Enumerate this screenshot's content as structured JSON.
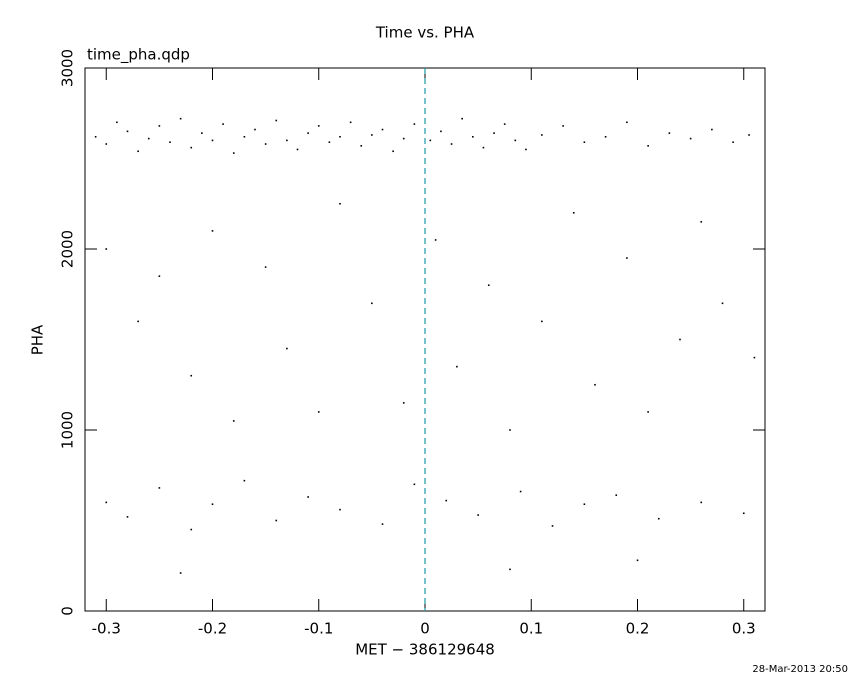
{
  "chart_data": {
    "type": "scatter",
    "title": "Time vs. PHA",
    "subtitle": "time_pha.qdp",
    "x_label": "MET − 386129648",
    "y_label": "PHA",
    "footer": "28-Mar-2013 20:50",
    "color": "#000000",
    "vline": 0,
    "vline_color": "#1a9aa8",
    "xlim": [
      -0.32,
      0.32
    ],
    "ylim": [
      0,
      3000
    ],
    "xticks": [
      -0.3,
      -0.2,
      -0.1,
      0,
      0.1,
      0.2,
      0.3
    ],
    "yticks": [
      0,
      1000,
      2000,
      3000
    ],
    "x": [
      -0.31,
      -0.3,
      -0.29,
      -0.28,
      -0.27,
      -0.26,
      -0.25,
      -0.24,
      -0.23,
      -0.22,
      -0.21,
      -0.2,
      -0.19,
      -0.18,
      -0.17,
      -0.16,
      -0.15,
      -0.14,
      -0.13,
      -0.12,
      -0.11,
      -0.1,
      -0.09,
      -0.08,
      -0.07,
      -0.06,
      -0.05,
      -0.04,
      -0.03,
      -0.02,
      -0.01,
      0.005,
      0.015,
      0.025,
      0.035,
      0.045,
      0.055,
      0.065,
      0.075,
      0.085,
      0.095,
      0.11,
      0.13,
      0.15,
      0.17,
      0.19,
      0.21,
      0.23,
      0.25,
      0.27,
      0.29,
      0.305,
      -0.3,
      -0.27,
      -0.25,
      -0.22,
      -0.2,
      -0.18,
      -0.15,
      -0.13,
      -0.1,
      -0.08,
      -0.05,
      -0.02,
      0.01,
      0.03,
      0.06,
      0.08,
      0.11,
      0.14,
      0.16,
      0.19,
      0.21,
      0.24,
      0.26,
      0.28,
      0.31,
      -0.3,
      -0.28,
      -0.25,
      -0.22,
      -0.2,
      -0.17,
      -0.14,
      -0.11,
      -0.08,
      -0.04,
      -0.01,
      0.02,
      0.05,
      0.09,
      0.12,
      0.15,
      0.18,
      0.22,
      0.26,
      0.3,
      -0.23,
      0.08,
      0.2
    ],
    "values": [
      2620,
      2580,
      2700,
      2650,
      2540,
      2610,
      2680,
      2590,
      2720,
      2560,
      2640,
      2600,
      2690,
      2530,
      2620,
      2660,
      2580,
      2710,
      2600,
      2550,
      2640,
      2680,
      2590,
      2620,
      2700,
      2570,
      2630,
      2660,
      2540,
      2610,
      2690,
      2600,
      2650,
      2580,
      2720,
      2620,
      2560,
      2640,
      2690,
      2600,
      2550,
      2630,
      2680,
      2590,
      2620,
      2700,
      2570,
      2640,
      2610,
      2660,
      2590,
      2630,
      2000,
      1600,
      1850,
      1300,
      2100,
      1050,
      1900,
      1450,
      1100,
      2250,
      1700,
      1150,
      2050,
      1350,
      1800,
      1000,
      1600,
      2200,
      1250,
      1950,
      1100,
      1500,
      2150,
      1700,
      1400,
      600,
      520,
      680,
      450,
      590,
      720,
      500,
      630,
      560,
      480,
      700,
      610,
      530,
      660,
      470,
      590,
      640,
      510,
      600,
      540,
      210,
      230,
      280
    ]
  }
}
